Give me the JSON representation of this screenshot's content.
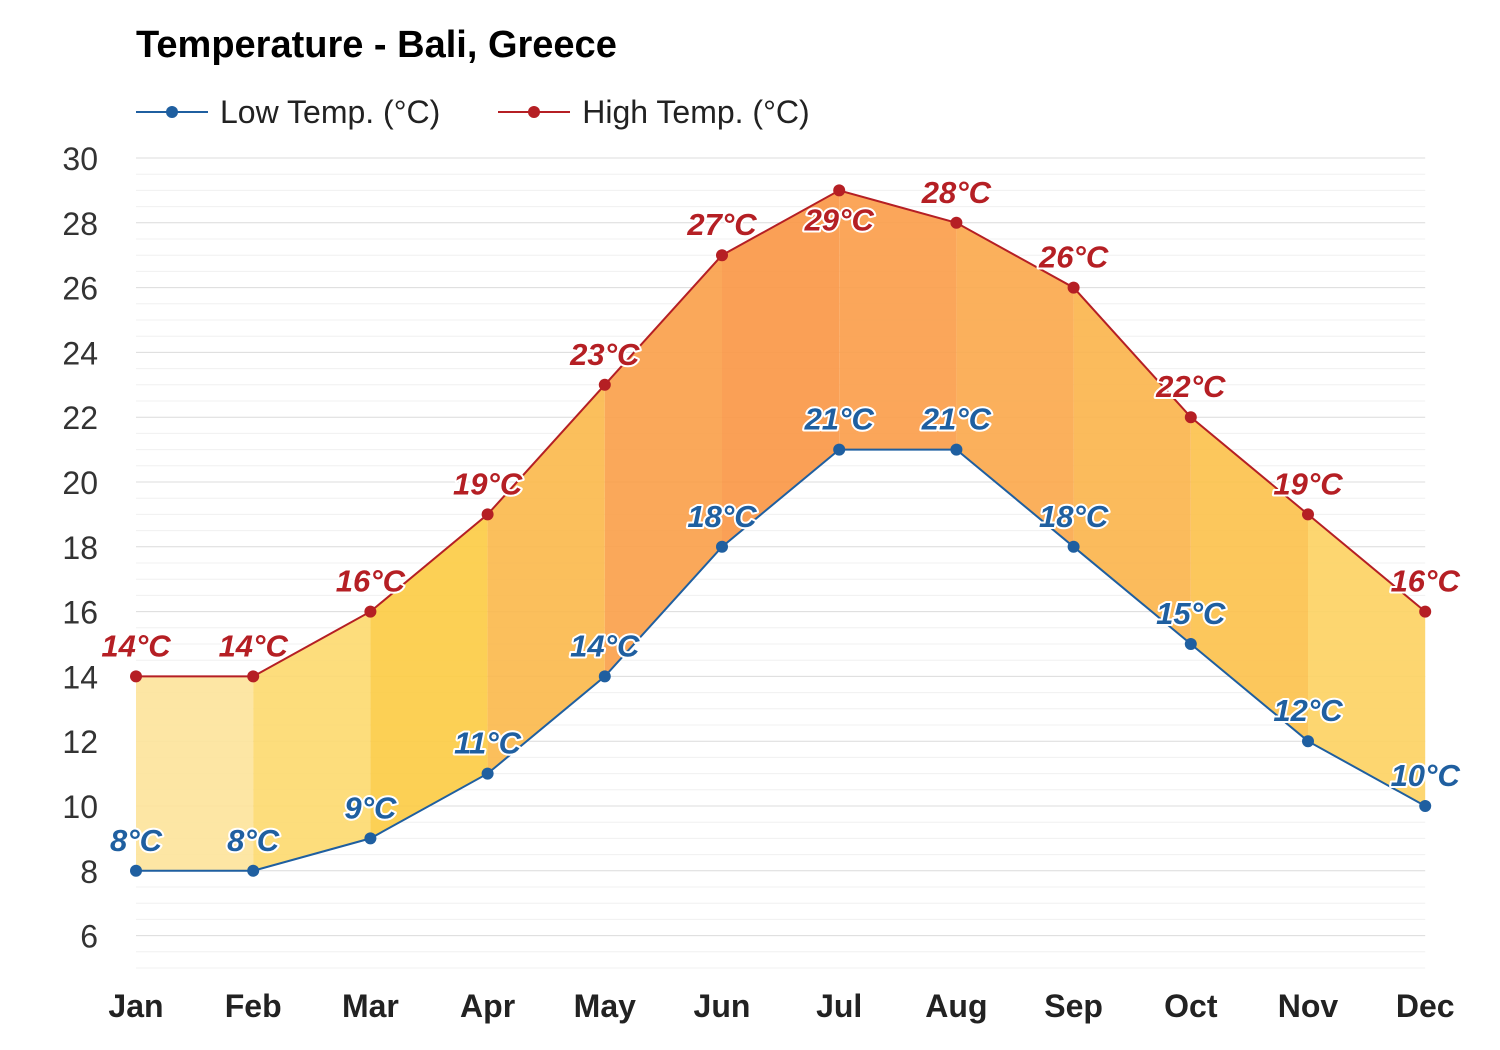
{
  "chart_data": {
    "type": "area",
    "title": "Temperature - Bali, Greece",
    "xlabel": "",
    "ylabel": "",
    "ylim": [
      5,
      30
    ],
    "yticks": [
      6,
      8,
      10,
      12,
      14,
      16,
      18,
      20,
      22,
      24,
      26,
      28,
      30
    ],
    "grid": true,
    "legend_position": "top-left",
    "categories": [
      "Jan",
      "Feb",
      "Mar",
      "Apr",
      "May",
      "Jun",
      "Jul",
      "Aug",
      "Sep",
      "Oct",
      "Nov",
      "Dec"
    ],
    "series": [
      {
        "name": "Low Temp. (°C)",
        "color": "#1f5fa0",
        "values": [
          8,
          8,
          9,
          11,
          14,
          18,
          21,
          21,
          18,
          15,
          12,
          10
        ],
        "labels": [
          "8°C",
          "8°C",
          "9°C",
          "11°C",
          "14°C",
          "18°C",
          "21°C",
          "21°C",
          "18°C",
          "15°C",
          "12°C",
          "10°C"
        ]
      },
      {
        "name": "High Temp. (°C)",
        "color": "#b51f24",
        "values": [
          14,
          14,
          16,
          19,
          23,
          27,
          29,
          28,
          26,
          22,
          19,
          16
        ],
        "labels": [
          "14°C",
          "14°C",
          "16°C",
          "19°C",
          "23°C",
          "27°C",
          "29°C",
          "28°C",
          "26°C",
          "22°C",
          "19°C",
          "16°C"
        ]
      }
    ],
    "band_colors": [
      "#fde39a",
      "#fdd96e",
      "#fccb42",
      "#fbb84a",
      "#fa9f48",
      "#fa9644",
      "#fb9c48",
      "#fba74a",
      "#fbb44a",
      "#fcc14a",
      "#fdd260",
      "#fdd96e"
    ]
  }
}
